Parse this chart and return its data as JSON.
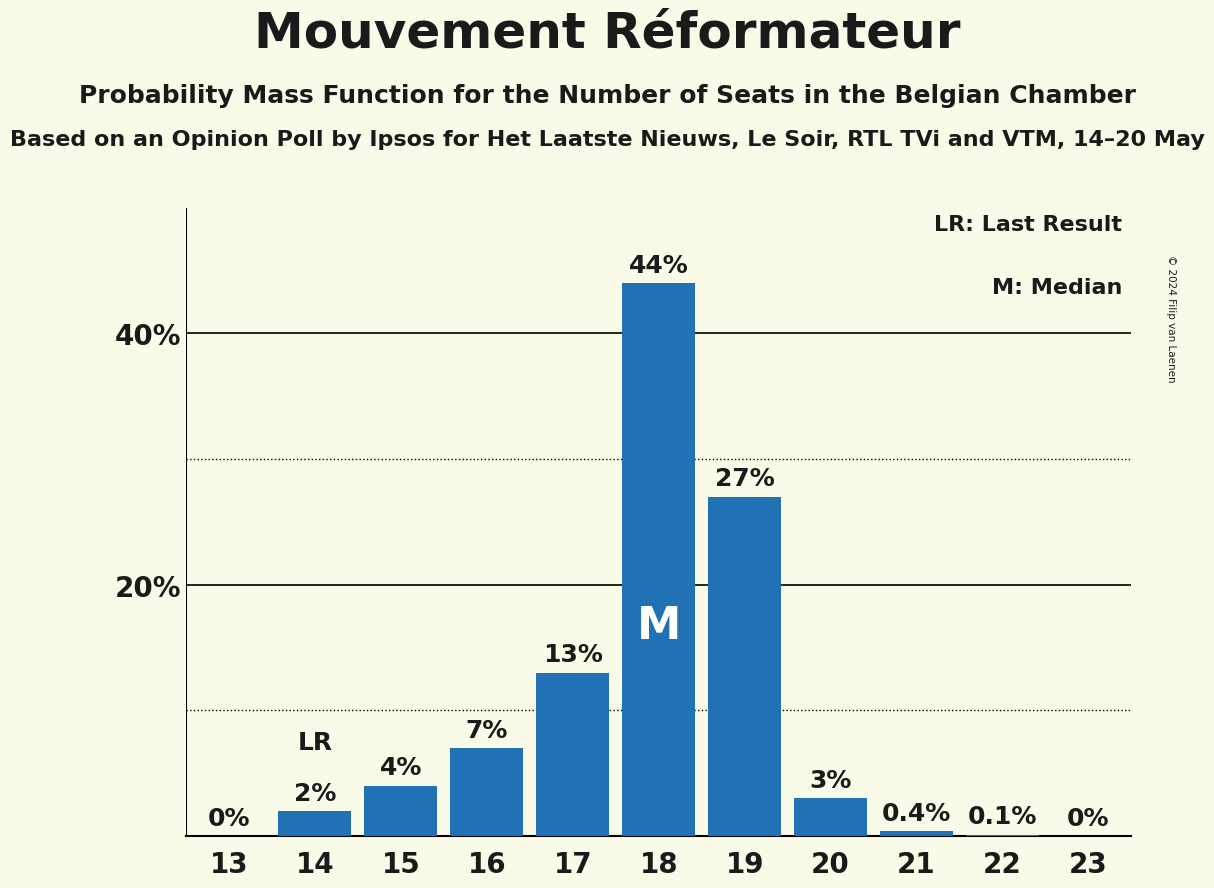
{
  "title": "Mouvement Réformateur",
  "subtitle": "Probability Mass Function for the Number of Seats in the Belgian Chamber",
  "subsubtitle": "Based on an Opinion Poll by Ipsos for Het Laatste Nieuws, Le Soir, RTL TVi and VTM, 14–20 May",
  "copyright": "© 2024 Filip van Laenen",
  "categories": [
    13,
    14,
    15,
    16,
    17,
    18,
    19,
    20,
    21,
    22,
    23
  ],
  "values": [
    0.0,
    2.0,
    4.0,
    7.0,
    13.0,
    44.0,
    27.0,
    3.0,
    0.4,
    0.1,
    0.0
  ],
  "bar_labels": [
    "0%",
    "2%",
    "4%",
    "7%",
    "13%",
    "44%",
    "27%",
    "3%",
    "0.4%",
    "0.1%",
    "0%"
  ],
  "bar_color": "#2171b5",
  "background_color": "#fafae8",
  "text_color": "#1a1a1a",
  "yticks": [
    20,
    40
  ],
  "ytick_labels": [
    "20%",
    "40%"
  ],
  "dotted_lines": [
    10,
    30
  ],
  "solid_lines": [
    20,
    40
  ],
  "ylim": [
    0,
    50
  ],
  "lr_bar_index": 1,
  "median_bar_index": 5,
  "legend_lr": "LR: Last Result",
  "legend_m": "M: Median",
  "title_fontsize": 36,
  "subtitle_fontsize": 18,
  "subsubtitle_fontsize": 16,
  "bar_label_fontsize": 18,
  "axis_label_fontsize": 20
}
